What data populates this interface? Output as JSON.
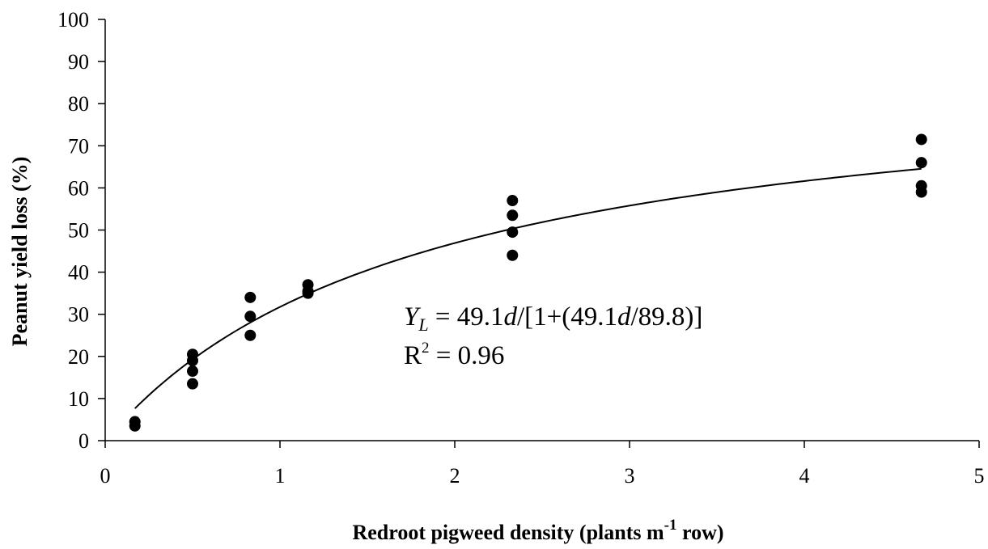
{
  "chart_data": {
    "type": "scatter",
    "title": "",
    "xlabel": {
      "before": "Redroot pigweed density (plants m",
      "sup": "-1",
      "after": " row)"
    },
    "ylabel": "Peanut yield loss (%)",
    "xlim": [
      0,
      5
    ],
    "ylim": [
      0,
      100
    ],
    "xticks": [
      "0",
      "1",
      "2",
      "3",
      "4",
      "5"
    ],
    "yticks": [
      "0",
      "10",
      "20",
      "30",
      "40",
      "50",
      "60",
      "70",
      "80",
      "90",
      "100"
    ],
    "grid": false,
    "legend": "none",
    "colors": {
      "points": "#000000",
      "line": "#000000",
      "axis": "#000000"
    },
    "series": [
      {
        "kind": "points",
        "points": [
          [
            0.17,
            3.5
          ],
          [
            0.17,
            4.5
          ],
          [
            0.5,
            13.5
          ],
          [
            0.5,
            16.5
          ],
          [
            0.5,
            19
          ],
          [
            0.5,
            20.5
          ],
          [
            0.83,
            25
          ],
          [
            0.83,
            29.5
          ],
          [
            0.83,
            34
          ],
          [
            1.16,
            35
          ],
          [
            1.16,
            35.5
          ],
          [
            1.16,
            37
          ],
          [
            2.33,
            44
          ],
          [
            2.33,
            49.5
          ],
          [
            2.33,
            53.5
          ],
          [
            2.33,
            57
          ],
          [
            4.67,
            59
          ],
          [
            4.67,
            60.5
          ],
          [
            4.67,
            66
          ],
          [
            4.67,
            71.5
          ]
        ]
      },
      {
        "kind": "fit",
        "a": 49.1,
        "b": 89.8,
        "xmin": 0.17,
        "xmax": 4.67
      }
    ],
    "annotations": {
      "equation": {
        "var": "Y",
        "sub": "L",
        "eq": " = 49.1",
        "d1": "d",
        "mid": "/[1+(49.1",
        "d2": "d",
        "end": "/89.8)]"
      },
      "r2": {
        "base": "R",
        "sup": "2",
        "rest": " = 0.96"
      }
    }
  }
}
